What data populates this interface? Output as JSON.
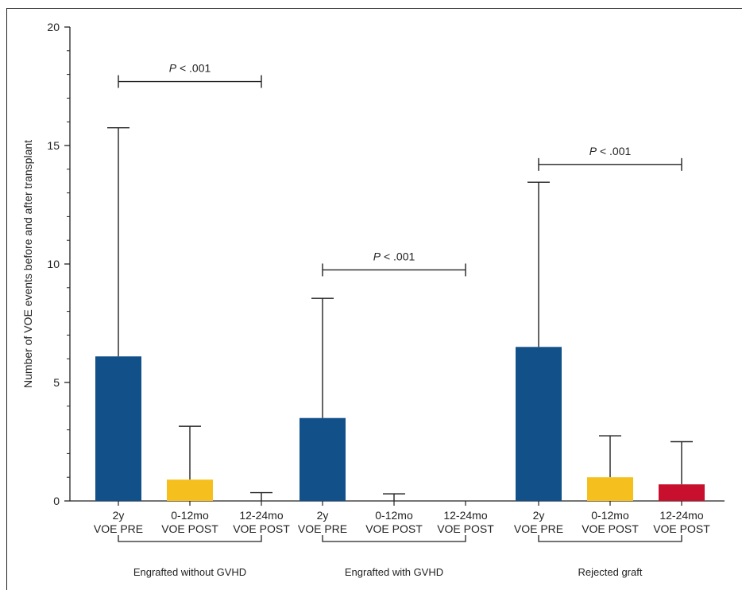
{
  "chart_data": {
    "type": "bar",
    "ylabel": "Number of VOE events before and after transplant",
    "ylim": [
      0,
      20
    ],
    "yticks": [
      0,
      5,
      10,
      15,
      20
    ],
    "groups": [
      {
        "name": "Engrafted without GVHD",
        "bars": [
          {
            "label": [
              "2y",
              "VOE PRE"
            ],
            "value": 6.1,
            "error_upper": 15.75,
            "color": "#12508a"
          },
          {
            "label": [
              "0-12mo",
              "VOE POST"
            ],
            "value": 0.9,
            "error_upper": 3.15,
            "color": "#f5bf1e"
          },
          {
            "label": [
              "12-24mo",
              "VOE POST"
            ],
            "value": 0.0,
            "error_upper": 0.35,
            "color": "#c8102e"
          }
        ],
        "significance": {
          "text": "P < .001",
          "from": 0,
          "to": 2,
          "y": 17.7
        }
      },
      {
        "name": "Engrafted with GVHD",
        "bars": [
          {
            "label": [
              "2y",
              "VOE PRE"
            ],
            "value": 3.5,
            "error_upper": 8.55,
            "color": "#12508a"
          },
          {
            "label": [
              "0-12mo",
              "VOE POST"
            ],
            "value": 0.0,
            "error_upper": 0.3,
            "color": "#f5bf1e"
          },
          {
            "label": [
              "12-24mo",
              "VOE POST"
            ],
            "value": 0.0,
            "error_upper": 0.0,
            "color": "#c8102e"
          }
        ],
        "significance": {
          "text": "P < .001",
          "from": 0,
          "to": 2,
          "y": 9.75
        }
      },
      {
        "name": "Rejected graft",
        "bars": [
          {
            "label": [
              "2y",
              "VOE PRE"
            ],
            "value": 6.5,
            "error_upper": 13.45,
            "color": "#12508a"
          },
          {
            "label": [
              "0-12mo",
              "VOE POST"
            ],
            "value": 1.0,
            "error_upper": 2.75,
            "color": "#f5bf1e"
          },
          {
            "label": [
              "12-24mo",
              "VOE POST"
            ],
            "value": 0.7,
            "error_upper": 2.5,
            "color": "#c8102e"
          }
        ],
        "significance": {
          "text": "P < .001",
          "from": 0,
          "to": 2,
          "y": 14.2
        }
      }
    ]
  }
}
